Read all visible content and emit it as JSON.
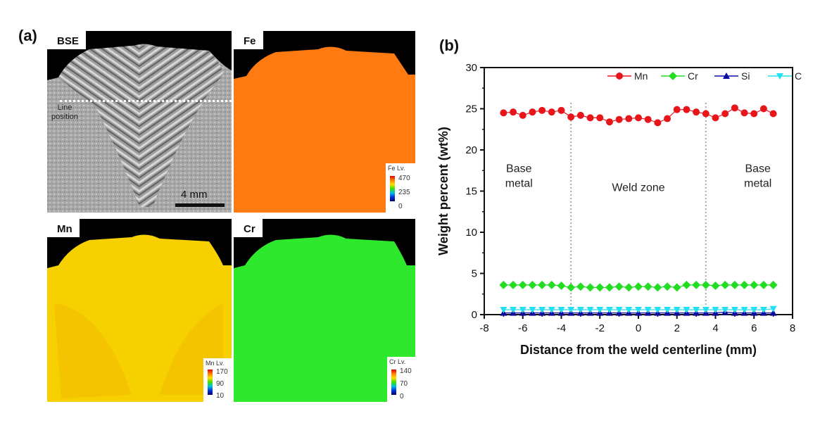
{
  "panel_a": {
    "label": "(a)",
    "maps": [
      {
        "title": "BSE"
      },
      {
        "title": "Fe",
        "legend_title": "Fe  Lv.",
        "legend_values": [
          "470",
          "235",
          "0"
        ],
        "color": "#ff7a10"
      },
      {
        "title": "Mn",
        "legend_title": "Mn  Lv.",
        "legend_values": [
          "170",
          "90",
          "10"
        ],
        "color": "#f7d000"
      },
      {
        "title": "Cr",
        "legend_title": "Cr  Lv.",
        "legend_values": [
          "140",
          "70",
          "0"
        ],
        "color": "#2ee82e"
      }
    ],
    "line_position_label_1": "Line",
    "line_position_label_2": "position",
    "scale_bar_label": "4 mm"
  },
  "panel_b": {
    "label": "(b)"
  },
  "chart_data": {
    "type": "line",
    "title": "",
    "xlabel": "Distance from the weld centerline (mm)",
    "ylabel": "Weight percent (wt%)",
    "xlim": [
      -8,
      8
    ],
    "ylim": [
      0,
      30
    ],
    "xticks": [
      -8,
      -6,
      -4,
      -2,
      0,
      2,
      4,
      6,
      8
    ],
    "yticks": [
      0,
      5,
      10,
      15,
      20,
      25,
      30
    ],
    "grid": false,
    "legend_position": "top-right",
    "x": [
      -7,
      -6.5,
      -6,
      -5.5,
      -5,
      -4.5,
      -4,
      -3.5,
      -3,
      -2.5,
      -2,
      -1.5,
      -1,
      -0.5,
      0,
      0.5,
      1,
      1.5,
      2,
      2.5,
      3,
      3.5,
      4,
      4.5,
      5,
      5.5,
      6,
      6.5,
      7
    ],
    "series": [
      {
        "name": "Mn",
        "color": "#e8151b",
        "marker": "circle",
        "values": [
          24.5,
          24.6,
          24.2,
          24.6,
          24.8,
          24.6,
          24.8,
          24.0,
          24.2,
          23.9,
          23.9,
          23.4,
          23.7,
          23.8,
          23.9,
          23.7,
          23.3,
          23.8,
          24.9,
          24.9,
          24.6,
          24.4,
          23.9,
          24.4,
          25.1,
          24.5,
          24.4,
          25.0,
          24.4
        ]
      },
      {
        "name": "Cr",
        "color": "#22dd22",
        "marker": "diamond",
        "values": [
          3.6,
          3.6,
          3.6,
          3.6,
          3.6,
          3.6,
          3.5,
          3.3,
          3.4,
          3.3,
          3.3,
          3.3,
          3.4,
          3.3,
          3.4,
          3.4,
          3.3,
          3.4,
          3.3,
          3.6,
          3.6,
          3.6,
          3.5,
          3.6,
          3.6,
          3.6,
          3.6,
          3.6,
          3.6
        ]
      },
      {
        "name": "Si",
        "color": "#0a0aa0",
        "marker": "triangle-up",
        "values": [
          0.2,
          0.2,
          0.2,
          0.2,
          0.2,
          0.2,
          0.2,
          0.2,
          0.2,
          0.2,
          0.2,
          0.2,
          0.2,
          0.2,
          0.2,
          0.2,
          0.2,
          0.2,
          0.2,
          0.2,
          0.2,
          0.2,
          0.2,
          0.3,
          0.2,
          0.2,
          0.2,
          0.2,
          0.2
        ]
      },
      {
        "name": "C",
        "color": "#22e0f0",
        "marker": "triangle-down",
        "values": [
          0.6,
          0.6,
          0.6,
          0.6,
          0.6,
          0.6,
          0.6,
          0.6,
          0.6,
          0.6,
          0.6,
          0.6,
          0.6,
          0.6,
          0.6,
          0.6,
          0.6,
          0.6,
          0.6,
          0.6,
          0.6,
          0.6,
          0.6,
          0.6,
          0.6,
          0.6,
          0.6,
          0.6,
          0.7
        ]
      }
    ],
    "zone_boundaries": [
      -3.5,
      3.5
    ],
    "annotations": [
      {
        "text": "Base\nmetal",
        "x": -6.2,
        "y": 17.3
      },
      {
        "text": "Weld zone",
        "x": 0,
        "y": 15
      },
      {
        "text": "Base\nmetal",
        "x": 6.2,
        "y": 17.3
      }
    ]
  }
}
